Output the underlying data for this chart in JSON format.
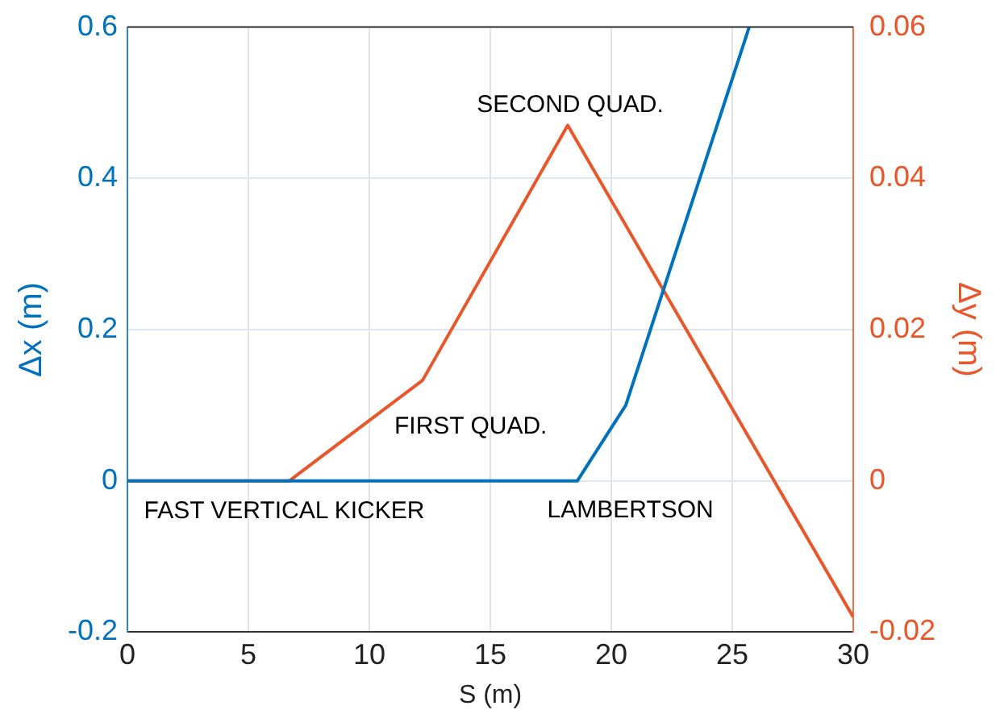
{
  "chart_data": {
    "type": "line",
    "xlabel": "S (m)",
    "ylabel": "Δx (m)",
    "y2label": "Δy (m)",
    "xlim": [
      0,
      30
    ],
    "xticks": [
      0,
      5,
      10,
      15,
      20,
      25,
      30
    ],
    "ylim": [
      -0.2,
      0.6
    ],
    "yticks": [
      -0.2,
      0,
      0.2,
      0.4,
      0.6
    ],
    "y2lim": [
      -0.02,
      0.06
    ],
    "y2ticks": [
      -0.02,
      0,
      0.02,
      0.04,
      0.06
    ],
    "grid": true,
    "legend": false,
    "marker": "none",
    "line_style": "solid",
    "series": [
      {
        "color": "#0072bd",
        "x": [
          0,
          18.6,
          20.6,
          25.7
        ],
        "values": [
          0,
          0,
          0.1,
          0.6
        ]
      },
      {
        "axis": "y2",
        "color": "#e8562a",
        "x": [
          0,
          6.7,
          7.1,
          12.2,
          18.2,
          30
        ],
        "values": [
          0,
          0,
          0.001,
          0.0133,
          0.047,
          -0.018
        ]
      }
    ],
    "annotations": [
      "FAST VERTICAL KICKER",
      "FIRST QUAD.",
      "SECOND QUAD.",
      "LAMBERTSON"
    ]
  }
}
